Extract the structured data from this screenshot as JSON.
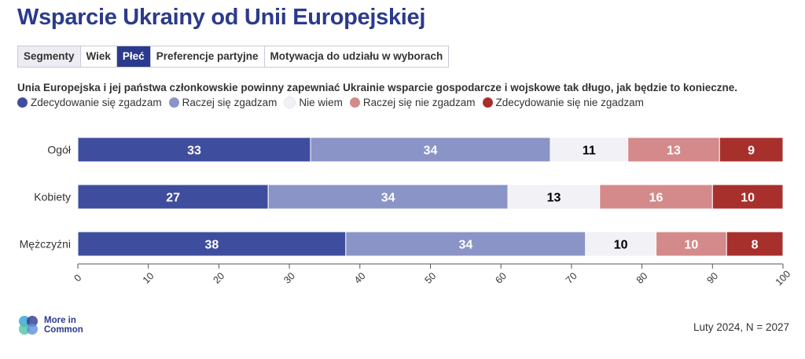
{
  "title": "Wsparcie Ukrainy od Unii Europejskiej",
  "tabs": [
    {
      "label": "Segmenty",
      "state": "grey"
    },
    {
      "label": "Wiek",
      "state": "normal"
    },
    {
      "label": "Płeć",
      "state": "active"
    },
    {
      "label": "Preferencje partyjne",
      "state": "normal"
    },
    {
      "label": "Motywacja do udziału w wyborach",
      "state": "normal"
    }
  ],
  "question": "Unia Europejska i jej państwa członkowskie powinny zapewniać Ukrainie wsparcie gospodarcze i wojskowe tak długo, jak będzie to konieczne.",
  "colors": [
    "#3f4d9e",
    "#8a94c6",
    "#f1f1f6",
    "#d48a8a",
    "#a8302c"
  ],
  "label_colors": [
    "#ffffff",
    "#ffffff",
    "#000000",
    "#ffffff",
    "#ffffff"
  ],
  "chart_data": {
    "type": "bar",
    "orientation": "horizontal",
    "stacked": true,
    "categories": [
      "Ogół",
      "Kobiety",
      "Mężczyźni"
    ],
    "series": [
      {
        "name": "Zdecydowanie się zgadzam",
        "values": [
          33,
          27,
          38
        ]
      },
      {
        "name": "Raczej się zgadzam",
        "values": [
          34,
          34,
          34
        ]
      },
      {
        "name": "Nie wiem",
        "values": [
          11,
          13,
          10
        ]
      },
      {
        "name": "Raczej się nie zgadzam",
        "values": [
          13,
          16,
          10
        ]
      },
      {
        "name": "Zdecydowanie się nie zgadzam",
        "values": [
          9,
          10,
          8
        ]
      }
    ],
    "xlim": [
      0,
      100
    ],
    "xticks": [
      0,
      10,
      20,
      30,
      40,
      50,
      60,
      70,
      80,
      90,
      100
    ],
    "legend": "top-left",
    "grid": false
  },
  "logo": {
    "text": "More in Common"
  },
  "note": "Luty 2024, N = 2027"
}
